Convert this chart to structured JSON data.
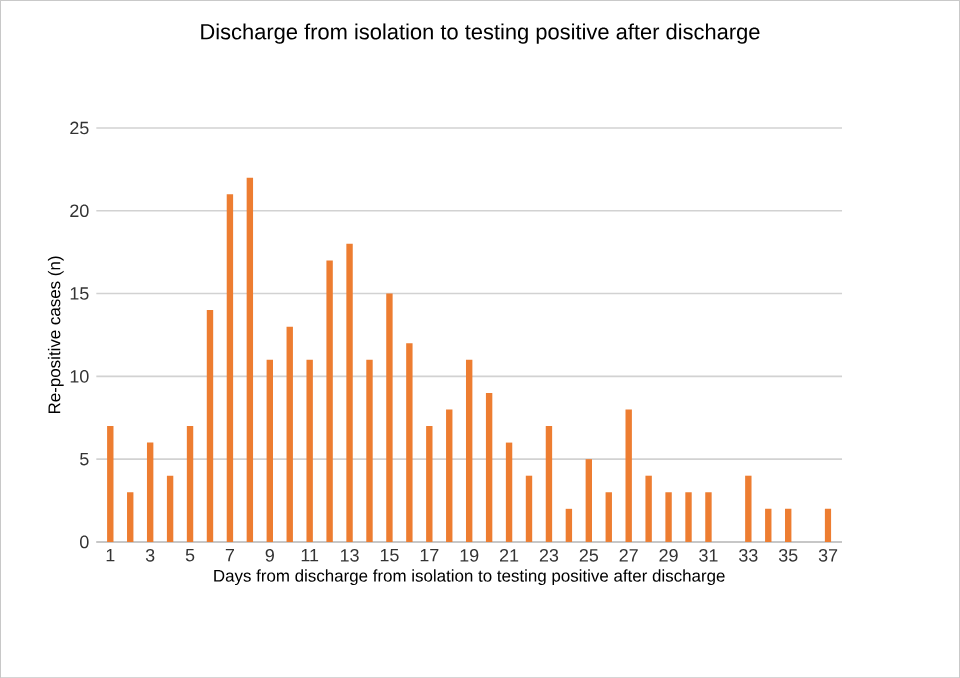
{
  "chart_data": {
    "type": "bar",
    "title": "Discharge from isolation to testing positive after discharge",
    "xlabel": "Days from discharge from isolation to testing positive after discharge",
    "ylabel": "Re-positive cases (n)",
    "categories": [
      "1",
      null,
      "3",
      null,
      "5",
      null,
      "7",
      null,
      "9",
      null,
      "11",
      null,
      "13",
      null,
      "15",
      null,
      "17",
      null,
      "19",
      null,
      "21",
      null,
      "23",
      null,
      "25",
      null,
      "27",
      null,
      "29",
      null,
      "31",
      null,
      "33",
      null,
      "35",
      null,
      "37"
    ],
    "values": [
      7,
      3,
      6,
      4,
      7,
      14,
      21,
      22,
      11,
      13,
      11,
      17,
      18,
      11,
      15,
      12,
      7,
      8,
      11,
      9,
      6,
      4,
      7,
      2,
      5,
      3,
      8,
      4,
      3,
      3,
      3,
      0,
      4,
      2,
      2,
      0,
      2
    ],
    "color": "#ed7d31",
    "ylim": [
      0,
      25
    ],
    "yticks": [
      0,
      5,
      10,
      15,
      20,
      25
    ],
    "grid": "y"
  }
}
